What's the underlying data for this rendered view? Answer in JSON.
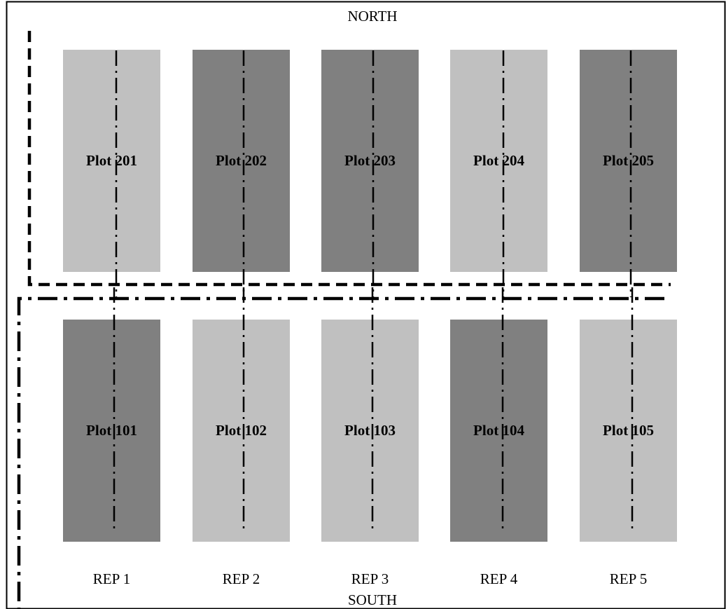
{
  "compass": {
    "north": "NORTH",
    "south": "SOUTH"
  },
  "colors": {
    "light": "#c0c0c0",
    "dark": "#808080",
    "line": "#000000"
  },
  "rows": [
    {
      "plots": [
        {
          "label": "Plot 201",
          "shade": "light"
        },
        {
          "label": "Plot 202",
          "shade": "dark"
        },
        {
          "label": "Plot 203",
          "shade": "dark"
        },
        {
          "label": "Plot 204",
          "shade": "light"
        },
        {
          "label": "Plot 205",
          "shade": "dark"
        }
      ]
    },
    {
      "plots": [
        {
          "label": "Plot 101",
          "shade": "dark"
        },
        {
          "label": "Plot 102",
          "shade": "light"
        },
        {
          "label": "Plot 103",
          "shade": "light"
        },
        {
          "label": "Plot 104",
          "shade": "dark"
        },
        {
          "label": "Plot 105",
          "shade": "light"
        }
      ]
    }
  ],
  "reps": [
    "REP 1",
    "REP 2",
    "REP 3",
    "REP 4",
    "REP 5"
  ]
}
